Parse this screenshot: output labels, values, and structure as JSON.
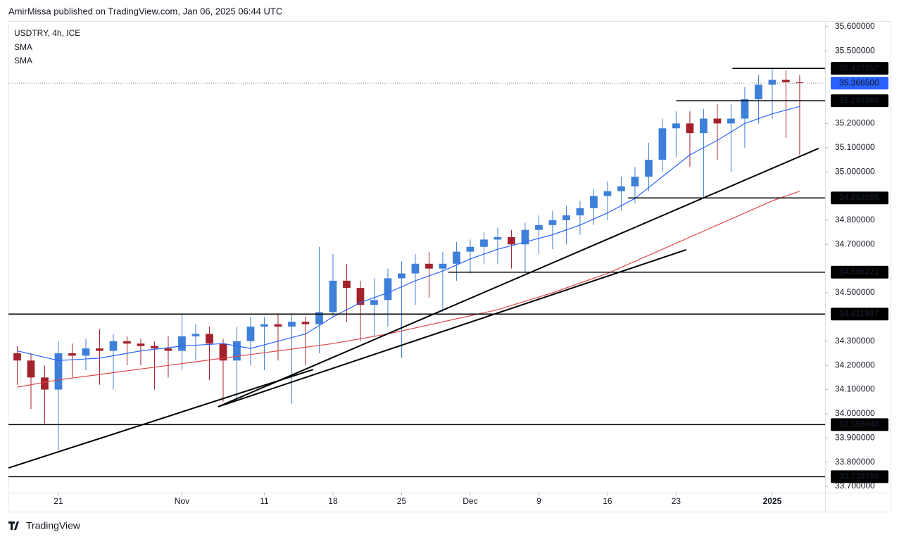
{
  "header": "AmirMissa published on TradingView.com, Jan 06, 2025 06:44 UTC",
  "footer": "TradingView",
  "chart_data": {
    "type": "candlestick",
    "title": "USDTRY, 4h, ICE",
    "xlim": [
      -3.64,
      55.85
    ],
    "ylim": [
      33.674,
      35.623
    ],
    "xticks": [
      {
        "value": 0,
        "label": "21"
      },
      {
        "value": 9,
        "label": "Nov"
      },
      {
        "value": 15,
        "label": "11"
      },
      {
        "value": 20,
        "label": "18"
      },
      {
        "value": 25,
        "label": "25"
      },
      {
        "value": 30,
        "label": "Dec"
      },
      {
        "value": 35,
        "label": "9"
      },
      {
        "value": 40,
        "label": "16"
      },
      {
        "value": 45,
        "label": "23"
      },
      {
        "value": 52,
        "label": "2025"
      }
    ],
    "yticks": [
      {
        "value": 35.6,
        "label": "35.600000"
      },
      {
        "value": 35.5,
        "label": "35.500000"
      },
      {
        "value": 35.2,
        "label": "35.200000"
      },
      {
        "value": 35.1,
        "label": "35.100000"
      },
      {
        "value": 35.0,
        "label": "35.000000"
      },
      {
        "value": 34.8,
        "label": "34.800000"
      },
      {
        "value": 34.7,
        "label": "34.700000"
      },
      {
        "value": 34.5,
        "label": "34.500000"
      },
      {
        "value": 34.3,
        "label": "34.300000"
      },
      {
        "value": 34.2,
        "label": "34.200000"
      },
      {
        "value": 34.1,
        "label": "34.100000"
      },
      {
        "value": 34.0,
        "label": "34.000000"
      },
      {
        "value": 33.9,
        "label": "33.900000"
      },
      {
        "value": 33.8,
        "label": "33.800000"
      },
      {
        "value": 33.7,
        "label": "33.700000"
      }
    ],
    "up_color": "#3d7fd9",
    "down_color": "#a3212b",
    "x": [
      -3,
      -2,
      -1,
      0,
      1,
      2,
      3,
      4,
      5,
      6,
      7,
      8,
      9,
      10,
      11,
      12,
      13,
      14,
      15,
      16,
      17,
      18,
      19,
      20,
      21,
      22,
      23,
      24,
      25,
      26,
      27,
      28,
      29,
      30,
      31,
      32,
      33,
      34,
      35,
      36,
      37,
      38,
      39,
      40,
      41,
      42,
      43,
      44,
      45,
      46,
      47,
      48,
      49,
      50,
      51,
      52,
      53,
      54
    ],
    "open": [
      34.25,
      34.22,
      34.15,
      34.1,
      34.25,
      34.24,
      34.27,
      34.26,
      34.3,
      34.29,
      34.28,
      34.27,
      34.26,
      34.32,
      34.33,
      34.29,
      34.22,
      34.3,
      34.36,
      34.37,
      34.36,
      34.38,
      34.37,
      34.42,
      34.55,
      34.52,
      34.45,
      34.47,
      34.56,
      34.58,
      34.62,
      34.6,
      34.62,
      34.67,
      34.69,
      34.72,
      34.73,
      34.7,
      34.76,
      34.78,
      34.8,
      34.82,
      34.85,
      34.9,
      34.92,
      34.94,
      34.98,
      35.05,
      35.18,
      35.2,
      35.16,
      35.22,
      35.2,
      35.22,
      35.3,
      35.36,
      35.38,
      35.37
    ],
    "high": [
      34.28,
      34.25,
      34.2,
      34.3,
      34.29,
      34.31,
      34.35,
      34.33,
      34.32,
      34.31,
      34.3,
      34.32,
      34.41,
      34.37,
      34.36,
      34.31,
      34.36,
      34.4,
      34.4,
      34.41,
      34.41,
      34.4,
      34.69,
      34.66,
      34.62,
      34.55,
      34.56,
      34.6,
      34.63,
      34.66,
      34.67,
      34.67,
      34.71,
      34.72,
      34.75,
      34.77,
      34.76,
      34.79,
      34.82,
      34.84,
      34.86,
      34.88,
      34.93,
      34.96,
      34.98,
      35.02,
      35.12,
      35.22,
      35.25,
      35.25,
      35.26,
      35.28,
      35.28,
      35.35,
      35.4,
      35.43,
      35.42,
      35.4
    ],
    "low": [
      34.12,
      34.02,
      33.96,
      33.85,
      34.15,
      34.18,
      34.12,
      34.1,
      34.2,
      34.2,
      34.1,
      34.15,
      34.18,
      34.22,
      34.14,
      34.05,
      34.06,
      34.2,
      34.18,
      34.22,
      34.04,
      34.2,
      34.25,
      34.4,
      34.38,
      34.3,
      34.32,
      34.36,
      34.23,
      34.45,
      34.48,
      34.42,
      34.55,
      34.58,
      34.62,
      34.62,
      34.6,
      34.58,
      34.66,
      34.68,
      34.7,
      34.74,
      34.78,
      34.8,
      34.84,
      34.87,
      34.92,
      35.0,
      35.06,
      35.02,
      34.89,
      35.05,
      35.0,
      35.1,
      35.2,
      35.22,
      35.14,
      35.07
    ],
    "close": [
      34.22,
      34.15,
      34.1,
      34.25,
      34.24,
      34.27,
      34.26,
      34.3,
      34.29,
      34.28,
      34.27,
      34.26,
      34.32,
      34.33,
      34.29,
      34.22,
      34.3,
      34.36,
      34.37,
      34.36,
      34.38,
      34.37,
      34.42,
      34.55,
      34.52,
      34.45,
      34.47,
      34.56,
      34.58,
      34.62,
      34.6,
      34.62,
      34.67,
      34.69,
      34.72,
      34.73,
      34.7,
      34.76,
      34.78,
      34.8,
      34.82,
      34.85,
      34.9,
      34.92,
      34.94,
      34.98,
      35.05,
      35.18,
      35.2,
      35.16,
      35.22,
      35.2,
      35.22,
      35.3,
      35.36,
      35.38,
      35.37,
      35.3665
    ],
    "series": [
      {
        "name": "SMA",
        "color": "#2962ff",
        "x": [
          -3,
          0,
          3,
          6,
          9,
          12,
          14,
          16,
          18,
          20,
          22,
          24,
          26,
          28,
          30,
          32,
          34,
          36,
          38,
          40,
          42,
          44,
          46,
          48,
          50,
          52,
          54
        ],
        "values": [
          34.26,
          34.22,
          34.23,
          34.26,
          34.28,
          34.29,
          34.27,
          34.3,
          34.33,
          34.4,
          34.46,
          34.5,
          34.55,
          34.59,
          34.64,
          34.68,
          34.71,
          34.74,
          34.78,
          34.83,
          34.89,
          34.98,
          35.07,
          35.13,
          35.2,
          35.24,
          35.27
        ]
      },
      {
        "name": "SMA",
        "color": "#e04848",
        "x": [
          -3,
          0,
          4,
          8,
          12,
          16,
          20,
          24,
          28,
          32,
          36,
          40,
          44,
          48,
          52,
          54
        ],
        "values": [
          34.11,
          34.14,
          34.17,
          34.2,
          34.23,
          34.26,
          34.29,
          34.33,
          34.38,
          34.43,
          34.5,
          34.58,
          34.68,
          34.78,
          34.88,
          34.92
        ]
      }
    ],
    "levels": [
      {
        "value": 35.427557,
        "label": "35.427557",
        "x_start": 49.1
      },
      {
        "value": 35.29396,
        "label": "35.293960",
        "x_start": 45.0
      },
      {
        "value": 34.892095,
        "label": "34.892095",
        "x_start": 41.5
      },
      {
        "value": 34.585221,
        "label": "34.585221",
        "x_start": 28.4
      },
      {
        "value": 34.411987,
        "label": "34.411987",
        "x_start": -3.64
      },
      {
        "value": 33.955048,
        "label": "33.955048",
        "x_start": -3.64
      },
      {
        "value": 33.739789,
        "label": "33.739789",
        "x_start": -3.64
      }
    ],
    "last_price": 35.3665,
    "last_price_label": "35.366500",
    "last_price_color": "#2962ff",
    "trendlines": [
      {
        "x": [
          -3.64,
          18.56
        ],
        "y": [
          33.776,
          34.183
        ]
      },
      {
        "x": [
          11.64,
          55.38
        ],
        "y": [
          34.029,
          35.097
        ]
      },
      {
        "x": [
          11.64,
          45.74
        ],
        "y": [
          34.029,
          34.678
        ]
      }
    ]
  }
}
